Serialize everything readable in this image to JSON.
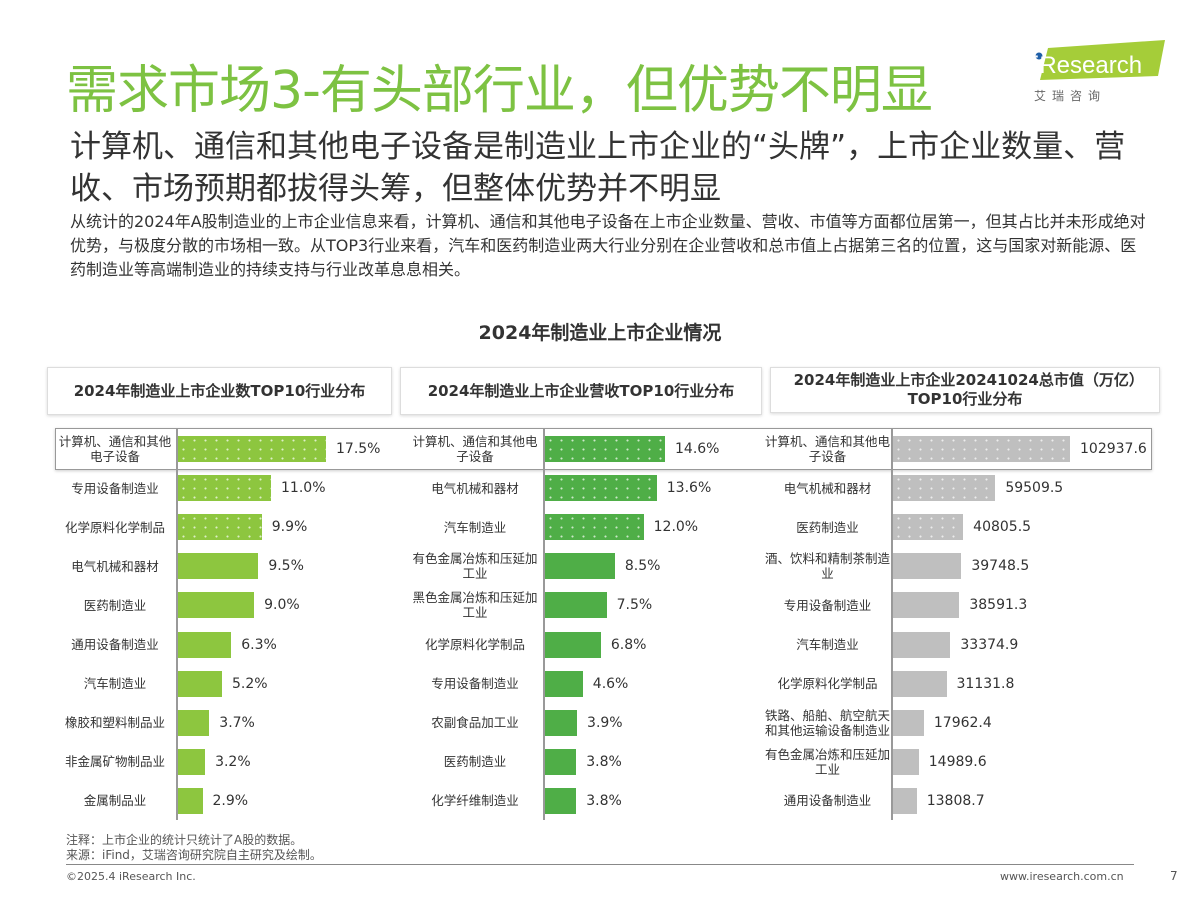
{
  "title": "需求市场3-有头部行业，但优势不明显",
  "subtitle": "计算机、通信和其他电子设备是制造业上市企业的“头牌”，上市企业数量、营收、市场预期都拔得头筹，但整体优势并不明显",
  "description": "从统计的2024年A股制造业的上市企业信息来看，计算机、通信和其他电子设备在上市企业数量、营收、市值等方面都位居第一，但其占比并未形成绝对优势，与极度分散的市场相一致。从TOP3行业来看，汽车和医药制造业两大行业分别在企业营收和总市值上占据第三名的位置，这与国家对新能源、医药制造业等高端制造业的持续支持与行业改革息息相关。",
  "logo": {
    "text": "iResearch",
    "sub": "艾 瑞 咨 询",
    "color": "#a5cd39"
  },
  "footer": {
    "note": "注释：上市企业的统计只统计了A股的数据。",
    "source": "来源：iFind，艾瑞咨询研究院自主研究及绘制。",
    "copyright": "©2025.4 iResearch Inc.",
    "url": "www.iresearch.com.cn",
    "page": "7"
  },
  "chart_data": {
    "title": "2024年制造业上市企业情况",
    "charts": [
      {
        "type": "bar",
        "orientation": "horizontal",
        "title": "2024年制造业上市企业数TOP10行业分布",
        "color": "#8dc63f",
        "patterned_top": 3,
        "unit": "%",
        "categories": [
          "计算机、通信和其他电子设备",
          "专用设备制造业",
          "化学原料化学制品",
          "电气机械和器材",
          "医药制造业",
          "通用设备制造业",
          "汽车制造业",
          "橡胶和塑料制品业",
          "非金属矿物制品业",
          "金属制品业"
        ],
        "values": [
          17.5,
          11.0,
          9.9,
          9.5,
          9.0,
          6.3,
          5.2,
          3.7,
          3.2,
          2.9
        ],
        "labels": [
          "17.5%",
          "11.0%",
          "9.9%",
          "9.5%",
          "9.0%",
          "6.3%",
          "5.2%",
          "3.7%",
          "3.2%",
          "2.9%"
        ]
      },
      {
        "type": "bar",
        "orientation": "horizontal",
        "title": "2024年制造业上市企业营收TOP10行业分布",
        "color": "#4fae47",
        "patterned_top": 3,
        "unit": "%",
        "categories": [
          "计算机、通信和其他电子设备",
          "电气机械和器材",
          "汽车制造业",
          "有色金属冶炼和压延加工业",
          "黑色金属冶炼和压延加工业",
          "化学原料化学制品",
          "专用设备制造业",
          "农副食品加工业",
          "医药制造业",
          "化学纤维制造业"
        ],
        "values": [
          14.6,
          13.6,
          12.0,
          8.5,
          7.5,
          6.8,
          4.6,
          3.9,
          3.8,
          3.8
        ],
        "labels": [
          "14.6%",
          "13.6%",
          "12.0%",
          "8.5%",
          "7.5%",
          "6.8%",
          "4.6%",
          "3.9%",
          "3.8%",
          "3.8%"
        ]
      },
      {
        "type": "bar",
        "orientation": "horizontal",
        "title": "2024年制造业上市企业20241024总市值（万亿）TOP10行业分布",
        "color": "#bfbfbf",
        "patterned_top": 3,
        "categories": [
          "计算机、通信和其他电子设备",
          "电气机械和器材",
          "医药制造业",
          "酒、饮料和精制茶制造业",
          "专用设备制造业",
          "汽车制造业",
          "化学原料化学制品",
          "铁路、船舶、航空航天和其他运输设备制造业",
          "有色金属冶炼和压延加工业",
          "通用设备制造业"
        ],
        "values": [
          102937.6,
          59509.5,
          40805.5,
          39748.5,
          38591.3,
          33374.9,
          31131.8,
          17962.4,
          14989.6,
          13808.7
        ],
        "labels": [
          "102937.6",
          "59509.5",
          "40805.5",
          "39748.5",
          "38591.3",
          "33374.9",
          "31131.8",
          "17962.4",
          "14989.6",
          "13808.7"
        ]
      }
    ]
  }
}
